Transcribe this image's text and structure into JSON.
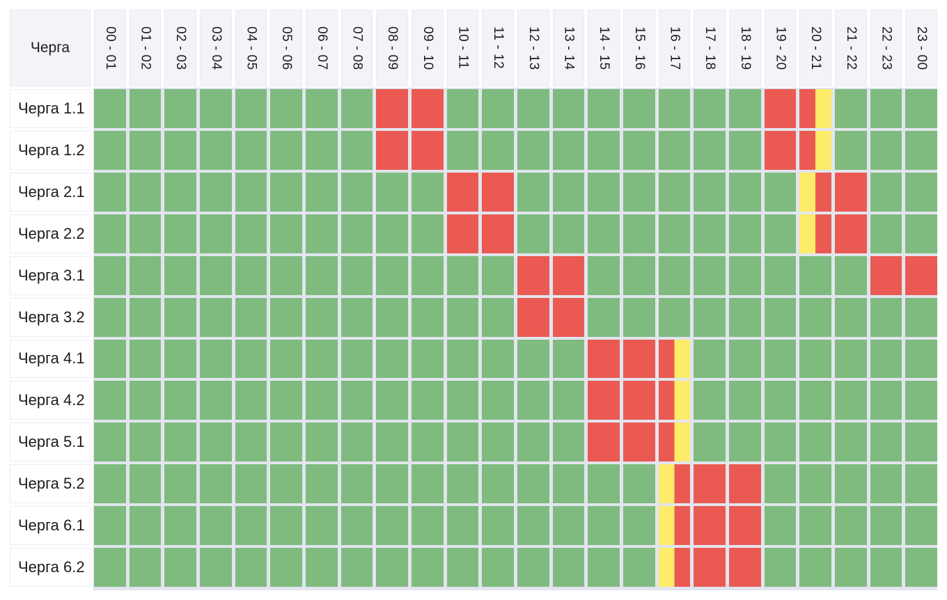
{
  "chart_data": {
    "type": "heatmap",
    "title": "Черга",
    "corner_label": "Черга",
    "x": [
      "00 - 01",
      "01 - 02",
      "02 - 03",
      "03 - 04",
      "04 - 05",
      "05 - 06",
      "06 - 07",
      "07 - 08",
      "08 - 09",
      "09 - 10",
      "10 - 11",
      "11 - 12",
      "12 - 13",
      "13 - 14",
      "14 - 15",
      "15 - 16",
      "16 - 17",
      "17 - 18",
      "18 - 19",
      "19 - 20",
      "20 - 21",
      "21 - 22",
      "22 - 23",
      "23 - 00"
    ],
    "cell_codes": {
      "g": "green full cell",
      "r": "red full cell",
      "ry": "split cell: red left half, yellow right half",
      "yr": "split cell: yellow left half, red right half"
    },
    "rows": [
      {
        "label": "Черга 1.1",
        "cells": [
          "g",
          "g",
          "g",
          "g",
          "g",
          "g",
          "g",
          "g",
          "r",
          "r",
          "g",
          "g",
          "g",
          "g",
          "g",
          "g",
          "g",
          "g",
          "g",
          "r",
          "ry",
          "g",
          "g",
          "g"
        ]
      },
      {
        "label": "Черга 1.2",
        "cells": [
          "g",
          "g",
          "g",
          "g",
          "g",
          "g",
          "g",
          "g",
          "r",
          "r",
          "g",
          "g",
          "g",
          "g",
          "g",
          "g",
          "g",
          "g",
          "g",
          "r",
          "ry",
          "g",
          "g",
          "g"
        ]
      },
      {
        "label": "Черга 2.1",
        "cells": [
          "g",
          "g",
          "g",
          "g",
          "g",
          "g",
          "g",
          "g",
          "g",
          "g",
          "r",
          "r",
          "g",
          "g",
          "g",
          "g",
          "g",
          "g",
          "g",
          "g",
          "yr",
          "r",
          "g",
          "g"
        ]
      },
      {
        "label": "Черга 2.2",
        "cells": [
          "g",
          "g",
          "g",
          "g",
          "g",
          "g",
          "g",
          "g",
          "g",
          "g",
          "r",
          "r",
          "g",
          "g",
          "g",
          "g",
          "g",
          "g",
          "g",
          "g",
          "yr",
          "r",
          "g",
          "g"
        ]
      },
      {
        "label": "Черга 3.1",
        "cells": [
          "g",
          "g",
          "g",
          "g",
          "g",
          "g",
          "g",
          "g",
          "g",
          "g",
          "g",
          "g",
          "r",
          "r",
          "g",
          "g",
          "g",
          "g",
          "g",
          "g",
          "g",
          "g",
          "r",
          "r"
        ]
      },
      {
        "label": "Черга 3.2",
        "cells": [
          "g",
          "g",
          "g",
          "g",
          "g",
          "g",
          "g",
          "g",
          "g",
          "g",
          "g",
          "g",
          "r",
          "r",
          "g",
          "g",
          "g",
          "g",
          "g",
          "g",
          "g",
          "g",
          "g",
          "g"
        ]
      },
      {
        "label": "Черга 4.1",
        "cells": [
          "g",
          "g",
          "g",
          "g",
          "g",
          "g",
          "g",
          "g",
          "g",
          "g",
          "g",
          "g",
          "g",
          "g",
          "r",
          "r",
          "ry",
          "g",
          "g",
          "g",
          "g",
          "g",
          "g",
          "g"
        ]
      },
      {
        "label": "Черга 4.2",
        "cells": [
          "g",
          "g",
          "g",
          "g",
          "g",
          "g",
          "g",
          "g",
          "g",
          "g",
          "g",
          "g",
          "g",
          "g",
          "r",
          "r",
          "ry",
          "g",
          "g",
          "g",
          "g",
          "g",
          "g",
          "g"
        ]
      },
      {
        "label": "Черга 5.1",
        "cells": [
          "g",
          "g",
          "g",
          "g",
          "g",
          "g",
          "g",
          "g",
          "g",
          "g",
          "g",
          "g",
          "g",
          "g",
          "r",
          "r",
          "ry",
          "g",
          "g",
          "g",
          "g",
          "g",
          "g",
          "g"
        ]
      },
      {
        "label": "Черга 5.2",
        "cells": [
          "g",
          "g",
          "g",
          "g",
          "g",
          "g",
          "g",
          "g",
          "g",
          "g",
          "g",
          "g",
          "g",
          "g",
          "g",
          "g",
          "yr",
          "r",
          "r",
          "g",
          "g",
          "g",
          "g",
          "g"
        ]
      },
      {
        "label": "Черга 6.1",
        "cells": [
          "g",
          "g",
          "g",
          "g",
          "g",
          "g",
          "g",
          "g",
          "g",
          "g",
          "g",
          "g",
          "g",
          "g",
          "g",
          "g",
          "yr",
          "r",
          "r",
          "g",
          "g",
          "g",
          "g",
          "g"
        ]
      },
      {
        "label": "Черга 6.2",
        "cells": [
          "g",
          "g",
          "g",
          "g",
          "g",
          "g",
          "g",
          "g",
          "g",
          "g",
          "g",
          "g",
          "g",
          "g",
          "g",
          "g",
          "yr",
          "r",
          "r",
          "g",
          "g",
          "g",
          "g",
          "g"
        ]
      }
    ],
    "colors": {
      "green": "#7FBB7F",
      "red": "#EA5A52",
      "yellow": "#FCEC69",
      "grid_gap": "#E2E5EE",
      "header_bg": "#F3F4F8",
      "label_bg": "#FFFFFF",
      "text": "#1B1B1F",
      "page_bg": "#FFFFFF"
    },
    "layout": {
      "grid_on": true,
      "header_text_rotated": "90deg clockwise"
    }
  }
}
